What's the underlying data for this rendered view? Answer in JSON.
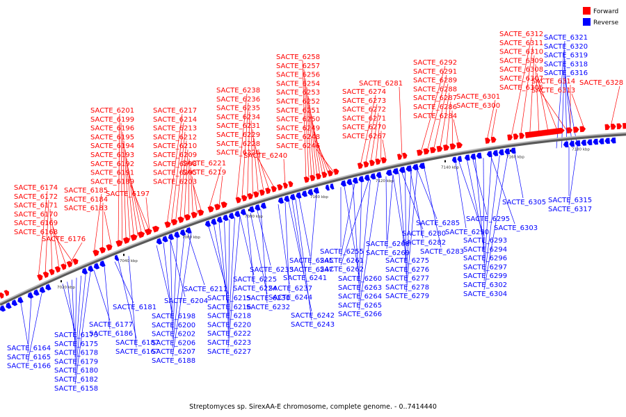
{
  "caption": "Streptomyces sp. SirexAA-E chromosome, complete genome. - 0..7414440",
  "legend": [
    {
      "label": "Forward",
      "color": "#ff0000"
    },
    {
      "label": "Reverse",
      "color": "#0000ff"
    }
  ],
  "colors": {
    "forward": "#ff0000",
    "reverse": "#0000ff",
    "backbone": "#808080"
  },
  "ticks": [
    "7020 kbp",
    "7040 kbp",
    "7060 kbp",
    "7080 kbp",
    "7100 kbp",
    "7120 kbp",
    "7140 kbp",
    "7160 kbp",
    "7180 kbp"
  ],
  "forward_labels": [
    "SACTE_6174",
    "SACTE_6172",
    "SACTE_6171",
    "SACTE_6170",
    "SACTE_6169",
    "SACTE_6168",
    "SACTE_6176",
    "SACTE_6185",
    "SACTE_6184",
    "SACTE_6183",
    "SACTE_6201",
    "SACTE_6199",
    "SACTE_6196",
    "SACTE_6195",
    "SACTE_6194",
    "SACTE_6193",
    "SACTE_6192",
    "SACTE_6191",
    "SACTE_6189",
    "SACTE_6197",
    "SACTE_6217",
    "SACTE_6214",
    "SACTE_6213",
    "SACTE_6212",
    "SACTE_6210",
    "SACTE_6209",
    "SACTE_6208",
    "SACTE_6205",
    "SACTE_6203",
    "SACTE_6221",
    "SACTE_6219",
    "SACTE_6238",
    "SACTE_6236",
    "SACTE_6235",
    "SACTE_6234",
    "SACTE_6231",
    "SACTE_6229",
    "SACTE_6228",
    "SACTE_6226",
    "SACTE_6240",
    "SACTE_6258",
    "SACTE_6257",
    "SACTE_6256",
    "SACTE_6254",
    "SACTE_6253",
    "SACTE_6252",
    "SACTE_6251",
    "SACTE_6250",
    "SACTE_6249",
    "SACTE_6248",
    "SACTE_6246",
    "SACTE_6281",
    "SACTE_6274",
    "SACTE_6273",
    "SACTE_6272",
    "SACTE_6271",
    "SACTE_6270",
    "SACTE_6267",
    "SACTE_6292",
    "SACTE_6291",
    "SACTE_6289",
    "SACTE_6288",
    "SACTE_6287",
    "SACTE_6286",
    "SACTE_6284",
    "SACTE_6301",
    "SACTE_6300",
    "SACTE_6312",
    "SACTE_6311",
    "SACTE_6310",
    "SACTE_6309",
    "SACTE_6308",
    "SACTE_6307",
    "SACTE_6306",
    "SACTE_6314",
    "SACTE_6313",
    "SACTE_6328"
  ],
  "reverse_labels": [
    "SACTE_6321",
    "SACTE_6320",
    "SACTE_6319",
    "SACTE_6318",
    "SACTE_6316",
    "SACTE_6315",
    "SACTE_6317",
    "SACTE_6305",
    "SACTE_6295",
    "SACTE_6303",
    "SACTE_6290",
    "SACTE_6293",
    "SACTE_6294",
    "SACTE_6296",
    "SACTE_6297",
    "SACTE_6299",
    "SACTE_6302",
    "SACTE_6304",
    "SACTE_6285",
    "SACTE_6280",
    "SACTE_6282",
    "SACTE_6283",
    "SACTE_6268",
    "SACTE_6269",
    "SACTE_6275",
    "SACTE_6276",
    "SACTE_6277",
    "SACTE_6278",
    "SACTE_6279",
    "SACTE_6255",
    "SACTE_6261",
    "SACTE_6262",
    "SACTE_6260",
    "SACTE_6263",
    "SACTE_6264",
    "SACTE_6265",
    "SACTE_6266",
    "SACTE_6245",
    "SACTE_6247",
    "SACTE_6241",
    "SACTE_6237",
    "SACTE_6244",
    "SACTE_6242",
    "SACTE_6243",
    "SACTE_6233",
    "SACTE_6225",
    "SACTE_6224",
    "SACTE_6230",
    "SACTE_6232",
    "SACTE_6211",
    "SACTE_6215",
    "SACTE_6216",
    "SACTE_6218",
    "SACTE_6220",
    "SACTE_6222",
    "SACTE_6223",
    "SACTE_6227",
    "SACTE_6204",
    "SACTE_6198",
    "SACTE_6200",
    "SACTE_6202",
    "SACTE_6206",
    "SACTE_6207",
    "SACTE_6188",
    "SACTE_6181",
    "SACTE_6177",
    "SACTE_6186",
    "SACTE_6187",
    "SACTE_6167",
    "SACTE_6173",
    "SACTE_6175",
    "SACTE_6178",
    "SACTE_6179",
    "SACTE_6180",
    "SACTE_6182",
    "SACTE_6158",
    "SACTE_6164",
    "SACTE_6165",
    "SACTE_6166"
  ]
}
